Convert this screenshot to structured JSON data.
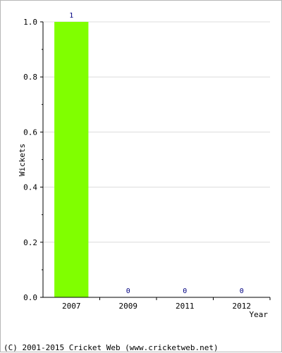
{
  "chart_data": {
    "type": "bar",
    "categories": [
      "2007",
      "2009",
      "2011",
      "2012"
    ],
    "values": [
      1,
      0,
      0,
      0
    ],
    "value_labels": [
      "1",
      "0",
      "0",
      "0"
    ],
    "xlabel": "Year",
    "ylabel": "Wickets",
    "ylim": [
      0,
      1.0
    ],
    "yticks": [
      "0.0",
      "0.2",
      "0.4",
      "0.6",
      "0.8",
      "1.0"
    ],
    "bar_color": "#80ff00",
    "value_label_color": "#000080",
    "grid": true
  },
  "footer": {
    "copyright": "(C) 2001-2015 Cricket Web (www.cricketweb.net)"
  }
}
